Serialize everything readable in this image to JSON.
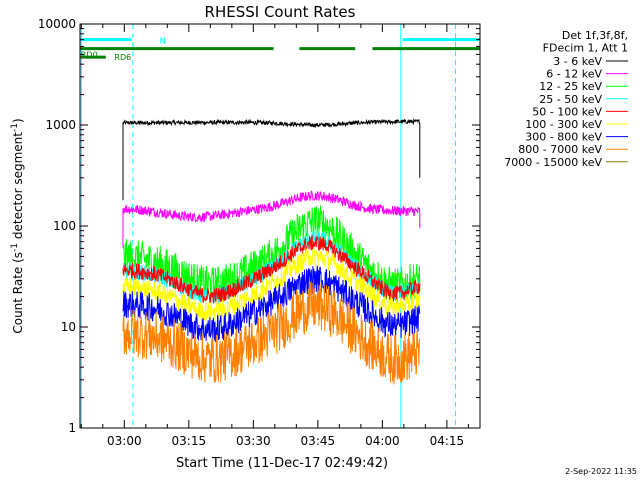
{
  "chart_data": {
    "type": "line",
    "title": "RHESSI Count Rates",
    "xlabel": "Start Time (11-Dec-17 02:49:42)",
    "ylabel_main": "Count Rate (s",
    "ylabel_sup": "-1",
    "ylabel_tail": " detector segment",
    "ylabel_sup2": "-1",
    "ylabel_close": ")",
    "yscale": "log",
    "ylim": [
      1,
      10000
    ],
    "xlim_minutes": [
      0,
      93
    ],
    "x_ticks": [
      {
        "label": "03:00",
        "min": 10.3
      },
      {
        "label": "03:15",
        "min": 25.3
      },
      {
        "label": "03:30",
        "min": 40.3
      },
      {
        "label": "03:45",
        "min": 55.3
      },
      {
        "label": "04:00",
        "min": 70.3
      },
      {
        "label": "04:15",
        "min": 85.3
      }
    ],
    "y_ticks": [
      {
        "label": "1",
        "value": 1
      },
      {
        "label": "10",
        "value": 10
      },
      {
        "label": "100",
        "value": 100
      },
      {
        "label": "1000",
        "value": 1000
      },
      {
        "label": "10000",
        "value": 10000
      }
    ],
    "legend_header": [
      "Det 1f,3f,8f,",
      "FDecim 1, Att 1"
    ],
    "series": [
      {
        "name": "3 - 6 keV",
        "color": "#000000",
        "start": 1050,
        "peak": 1000,
        "end": 1080,
        "noise": 0.02,
        "pre": 180
      },
      {
        "name": "6 - 12 keV",
        "color": "#ff00ff",
        "start": 150,
        "peak": 200,
        "end": 140,
        "noise": 0.05,
        "pre": 60
      },
      {
        "name": "12 - 25 keV",
        "color": "#00ff00",
        "start": 50,
        "peak": 110,
        "end": 32,
        "noise": 0.18
      },
      {
        "name": "25 - 50 keV",
        "color": "#00ffff",
        "start": 36,
        "peak": 75,
        "end": 27,
        "noise": 0.08
      },
      {
        "name": "50 - 100 keV",
        "color": "#ff0000",
        "start": 37,
        "peak": 68,
        "end": 27,
        "noise": 0.08
      },
      {
        "name": "100 - 300 keV",
        "color": "#ffff00",
        "start": 25,
        "peak": 50,
        "end": 20,
        "noise": 0.1
      },
      {
        "name": "300 - 800 keV",
        "color": "#0000ff",
        "start": 17,
        "peak": 30,
        "end": 13,
        "noise": 0.14
      },
      {
        "name": "800 - 7000 keV",
        "color": "#ff8000",
        "start": 9,
        "peak": 16,
        "end": 6,
        "noise": 0.25
      },
      {
        "name": "7000 - 15000 keV",
        "color": "#808000",
        "start": null,
        "peak": null,
        "end": null,
        "noise": 0
      }
    ],
    "data_window_minutes": [
      10.0,
      79.0
    ],
    "flare_peak_minutes": 55.0,
    "flags": [
      {
        "label": "N",
        "color": "#00ffff",
        "segments": [
          [
            0,
            12
          ],
          [
            75,
            93
          ]
        ],
        "level": 7000
      },
      {
        "label": "RD0",
        "color": "#008000",
        "segments": [
          [
            0,
            45
          ],
          [
            51,
            64
          ],
          [
            68,
            93
          ]
        ],
        "level": 5700
      },
      {
        "label": "RD6",
        "color": "#008000",
        "segments": [
          [
            0,
            6
          ]
        ],
        "level": 4700
      }
    ],
    "vlines": [
      {
        "min": 0.3,
        "color": "#00ffff",
        "style": "solid"
      },
      {
        "min": 12.3,
        "color": "#00ffff",
        "style": "dashed"
      },
      {
        "min": 74.6,
        "color": "#00ffff",
        "style": "solid"
      },
      {
        "min": 87.3,
        "color": "#00ffff",
        "style": "dashed"
      }
    ],
    "footer_date": "2-Sep-2022 11:35"
  }
}
